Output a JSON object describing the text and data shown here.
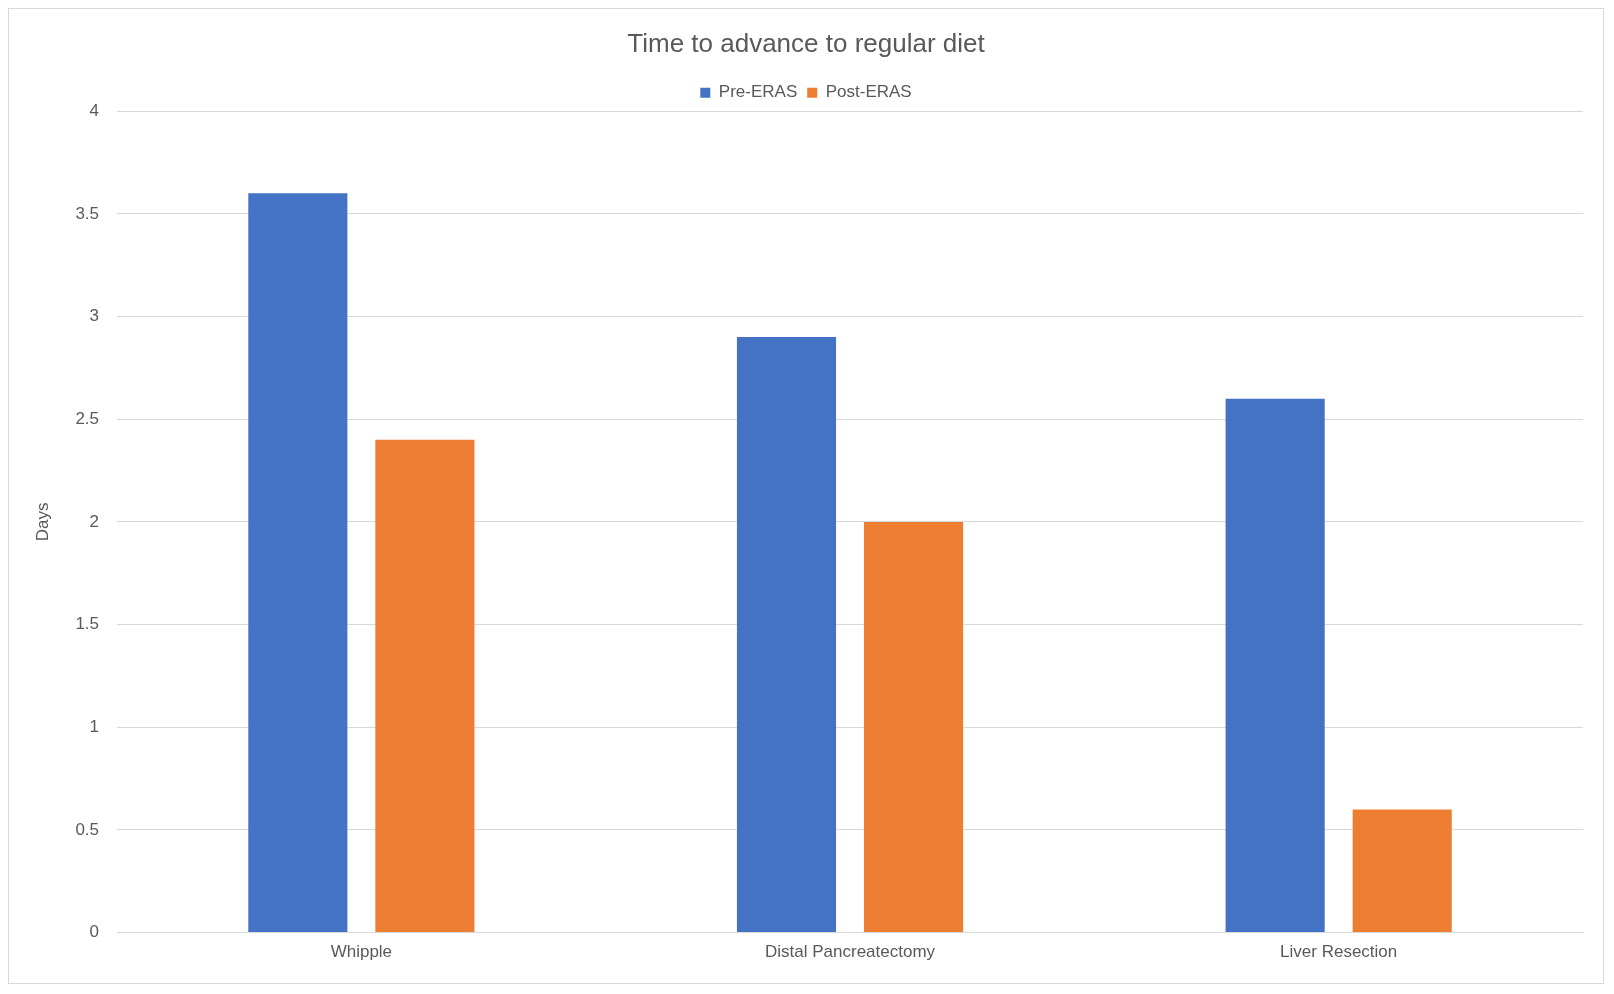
{
  "chart_data": {
    "type": "bar",
    "title": "Time to advance to regular diet",
    "ylabel": "Days",
    "categories": [
      "Whipple",
      "Distal Pancreatectomy",
      "Liver Resection"
    ],
    "series": [
      {
        "name": "Pre-ERAS",
        "color": "#4472c4",
        "values": [
          3.6,
          2.9,
          2.6
        ]
      },
      {
        "name": "Post-ERAS",
        "color": "#ed7d31",
        "values": [
          2.4,
          2.0,
          0.6
        ]
      }
    ],
    "ylim": [
      0,
      4
    ],
    "yticks": [
      0,
      0.5,
      1,
      1.5,
      2,
      2.5,
      3,
      3.5,
      4
    ],
    "grid": "y",
    "legend": "top"
  }
}
